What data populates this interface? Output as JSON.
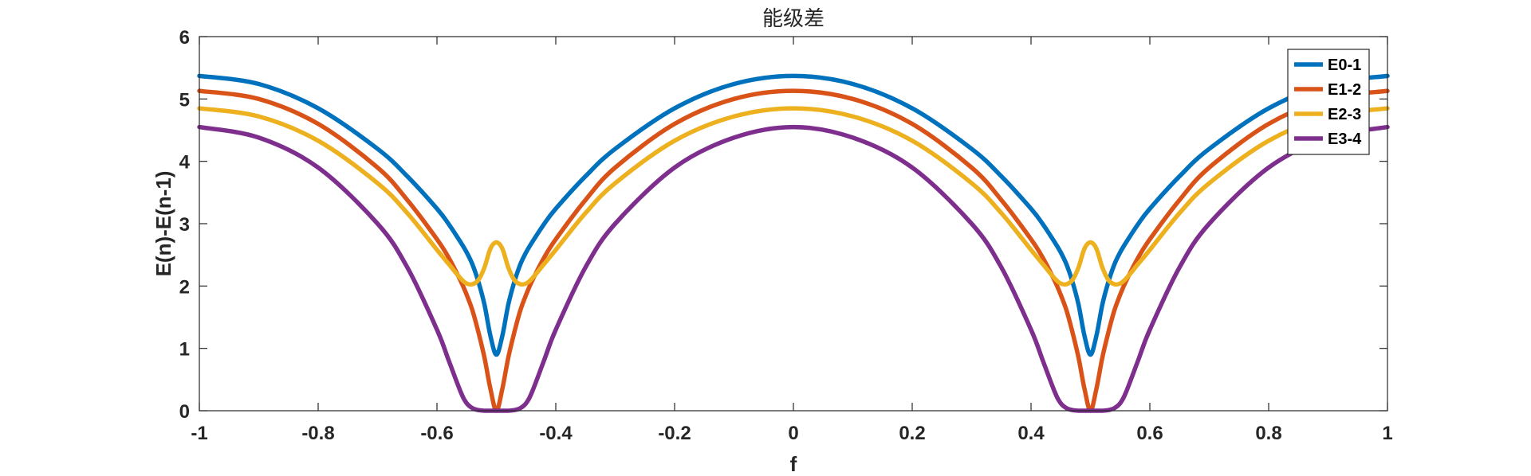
{
  "chart_data": {
    "type": "line",
    "title": "能级差",
    "xlabel": "f",
    "ylabel": "E(n)-E(n-1)",
    "xlim": [
      -1,
      1
    ],
    "ylim": [
      0,
      6
    ],
    "xticks": [
      "-1",
      "-0.8",
      "-0.6",
      "-0.4",
      "-0.2",
      "0",
      "0.2",
      "0.4",
      "0.6",
      "0.8",
      "1"
    ],
    "yticks": [
      "0",
      "1",
      "2",
      "3",
      "4",
      "5",
      "6"
    ],
    "grid": false,
    "legend_position": "top-right",
    "x": [
      -1,
      -0.9,
      -0.8,
      -0.7,
      -0.65,
      -0.6,
      -0.58,
      -0.56,
      -0.55,
      -0.54,
      -0.53,
      -0.52,
      -0.51,
      -0.5,
      -0.49,
      -0.48,
      -0.47,
      -0.46,
      -0.45,
      -0.44,
      -0.42,
      -0.4,
      -0.35,
      -0.3,
      -0.2,
      -0.1,
      0,
      0.1,
      0.2,
      0.3,
      0.35,
      0.4,
      0.42,
      0.44,
      0.45,
      0.46,
      0.47,
      0.48,
      0.49,
      0.5,
      0.51,
      0.52,
      0.53,
      0.54,
      0.55,
      0.56,
      0.58,
      0.6,
      0.65,
      0.7,
      0.8,
      0.9,
      1
    ],
    "series": [
      {
        "name": "E0-1",
        "color": "#0072BD",
        "values": [
          5.37,
          5.24,
          4.85,
          4.2,
          3.76,
          3.24,
          2.99,
          2.7,
          2.54,
          2.34,
          2.06,
          1.7,
          1.2,
          0.9,
          1.2,
          1.7,
          2.06,
          2.34,
          2.54,
          2.7,
          2.99,
          3.24,
          3.76,
          4.2,
          4.85,
          5.24,
          5.37,
          5.24,
          4.85,
          4.2,
          3.76,
          3.24,
          2.99,
          2.7,
          2.54,
          2.34,
          2.06,
          1.7,
          1.2,
          0.9,
          1.2,
          1.7,
          2.06,
          2.34,
          2.54,
          2.7,
          2.99,
          3.24,
          3.76,
          4.2,
          4.85,
          5.24,
          5.37
        ]
      },
      {
        "name": "E1-2",
        "color": "#D95319",
        "values": [
          5.13,
          5.0,
          4.6,
          3.9,
          3.38,
          2.75,
          2.45,
          2.08,
          1.86,
          1.6,
          1.25,
          0.85,
          0.35,
          0.0,
          0.35,
          0.85,
          1.25,
          1.6,
          1.86,
          2.08,
          2.45,
          2.75,
          3.38,
          3.9,
          4.6,
          5.0,
          5.13,
          5.0,
          4.6,
          3.9,
          3.38,
          2.75,
          2.45,
          2.08,
          1.86,
          1.6,
          1.25,
          0.85,
          0.35,
          0.0,
          0.35,
          0.85,
          1.25,
          1.6,
          1.86,
          2.08,
          2.45,
          2.75,
          3.38,
          3.9,
          4.6,
          5.0,
          5.13
        ]
      },
      {
        "name": "E2-3",
        "color": "#EDB120",
        "values": [
          4.85,
          4.72,
          4.33,
          3.65,
          3.17,
          2.58,
          2.35,
          2.12,
          2.04,
          2.03,
          2.1,
          2.3,
          2.6,
          2.7,
          2.6,
          2.3,
          2.1,
          2.03,
          2.04,
          2.12,
          2.35,
          2.58,
          3.17,
          3.65,
          4.33,
          4.72,
          4.85,
          4.72,
          4.33,
          3.65,
          3.17,
          2.58,
          2.35,
          2.12,
          2.04,
          2.03,
          2.1,
          2.3,
          2.6,
          2.7,
          2.6,
          2.3,
          2.1,
          2.03,
          2.04,
          2.12,
          2.35,
          2.58,
          3.17,
          3.65,
          4.33,
          4.72,
          4.85
        ]
      },
      {
        "name": "E3-4",
        "color": "#7E2F8E",
        "values": [
          4.55,
          4.38,
          3.9,
          3.0,
          2.3,
          1.3,
          0.8,
          0.3,
          0.12,
          0.04,
          0.01,
          0.0,
          0.0,
          0.0,
          0.0,
          0.0,
          0.01,
          0.04,
          0.12,
          0.3,
          0.8,
          1.3,
          2.3,
          3.0,
          3.9,
          4.38,
          4.55,
          4.38,
          3.9,
          3.0,
          2.3,
          1.3,
          0.8,
          0.3,
          0.12,
          0.04,
          0.01,
          0.0,
          0.0,
          0.0,
          0.0,
          0.0,
          0.01,
          0.04,
          0.12,
          0.3,
          0.8,
          1.3,
          2.3,
          3.0,
          3.9,
          4.38,
          4.55
        ]
      }
    ]
  }
}
